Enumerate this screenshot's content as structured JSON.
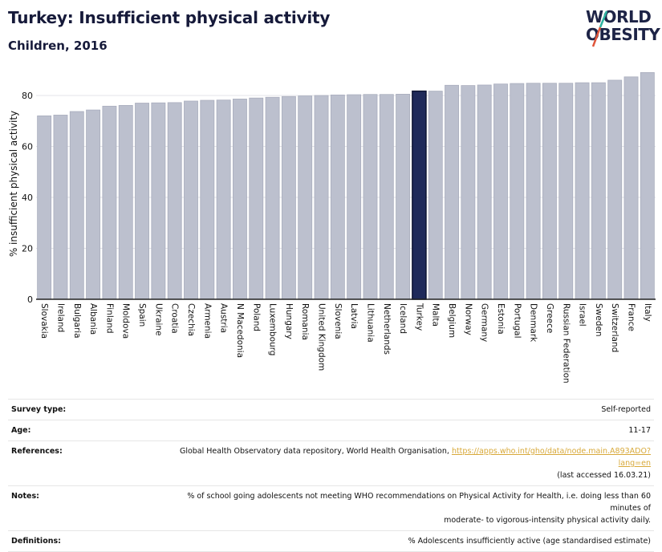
{
  "header": {
    "title": "Turkey: Insufficient physical activity",
    "subtitle": "Children, 2016",
    "logo_line1": "WORLD",
    "logo_line2": "OBESITY"
  },
  "colors": {
    "bar": "#bcc0ce",
    "bar_edge": "#a9adbd",
    "highlight": "#1f2a5a",
    "highlight_edge": "#0d1433",
    "grid": "#e3e3e8",
    "logo_teal": "#2fb3a0",
    "logo_red": "#e0563b"
  },
  "chart_data": {
    "type": "bar",
    "title": "Turkey: Insufficient physical activity",
    "subtitle": "Children, 2016",
    "xlabel": "",
    "ylabel": "% insufficient physical activity",
    "ylim": [
      0,
      90
    ],
    "yticks": [
      0,
      20,
      40,
      60,
      80
    ],
    "grid": true,
    "highlight": "Turkey",
    "categories": [
      "Slovakia",
      "Ireland",
      "Bulgaria",
      "Albania",
      "Finland",
      "Moldova",
      "Spain",
      "Ukraine",
      "Croatia",
      "Czechia",
      "Armenia",
      "Austria",
      "N Macedonia",
      "Poland",
      "Luxembourg",
      "Hungary",
      "Romania",
      "United Kingdom",
      "Slovenia",
      "Latvia",
      "Lithuania",
      "Netherlands",
      "Iceland",
      "Turkey",
      "Malta",
      "Belgium",
      "Norway",
      "Germany",
      "Estonia",
      "Portugal",
      "Denmark",
      "Greece",
      "Russian Federation",
      "Israel",
      "Sweden",
      "Switzerland",
      "France",
      "Italy"
    ],
    "values": [
      72.0,
      72.3,
      73.7,
      74.3,
      75.8,
      76.1,
      77.0,
      77.1,
      77.2,
      77.8,
      78.1,
      78.2,
      78.6,
      79.0,
      79.3,
      79.6,
      79.8,
      80.0,
      80.2,
      80.3,
      80.4,
      80.4,
      80.5,
      81.7,
      81.7,
      84.0,
      83.9,
      84.1,
      84.5,
      84.7,
      84.8,
      84.8,
      84.8,
      85.0,
      85.0,
      86.0,
      87.3,
      89.0
    ]
  },
  "info": {
    "rows": [
      {
        "label": "Survey type:",
        "value": "Self-reported"
      },
      {
        "label": "Age:",
        "value": "11-17"
      },
      {
        "label": "References:",
        "value_prefix": "Global Health Observatory data repository, World Health Organisation, ",
        "link": "https://apps.who.int/gho/data/node.main.A893ADO?lang=en",
        "value_suffix": "(last accessed 16.03.21)"
      },
      {
        "label": "Notes:",
        "value": "% of school going adolescents not meeting WHO recommendations on Physical Activity for Health, i.e. doing less than 60 minutes of",
        "value2": "moderate- to vigorous-intensity physical activity daily."
      },
      {
        "label": "Definitions:",
        "value": "% Adolescents insufficiently active (age standardised estimate)"
      }
    ]
  }
}
